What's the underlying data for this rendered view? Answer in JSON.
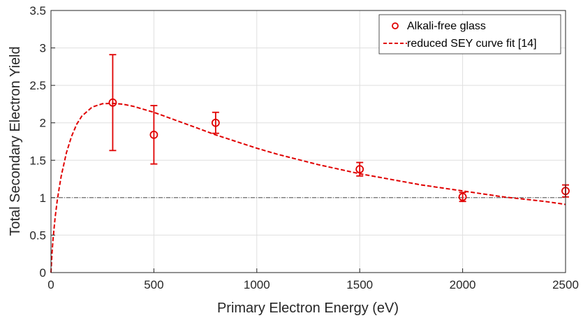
{
  "chart_data": {
    "type": "scatter",
    "xlabel": "Primary Electron Energy (eV)",
    "ylabel": "Total Secondary Electron Yield",
    "xlim": [
      0,
      2500
    ],
    "ylim": [
      0,
      3.5
    ],
    "xticks": [
      0,
      500,
      1000,
      1500,
      2000,
      2500
    ],
    "yticks": [
      0,
      0.5,
      1,
      1.5,
      2,
      2.5,
      3,
      3.5
    ],
    "xtick_labels": [
      "0",
      "500",
      "1000",
      "1500",
      "2000",
      "2500"
    ],
    "ytick_labels": [
      "0",
      "0.5",
      "1",
      "1.5",
      "2",
      "2.5",
      "3",
      "3.5"
    ],
    "grid": true,
    "legend_position": "top-right",
    "reference_line_y": 1,
    "series": [
      {
        "name": "Alkali-free glass",
        "kind": "points-with-errorbars",
        "color": "#e00000",
        "marker": "open-circle",
        "points": [
          {
            "x": 300,
            "y": 2.27,
            "lower": 1.63,
            "upper": 2.91
          },
          {
            "x": 500,
            "y": 1.84,
            "lower": 1.45,
            "upper": 2.23
          },
          {
            "x": 800,
            "y": 2.0,
            "lower": 1.86,
            "upper": 2.14
          },
          {
            "x": 1500,
            "y": 1.38,
            "lower": 1.29,
            "upper": 1.47
          },
          {
            "x": 2000,
            "y": 1.01,
            "lower": 0.95,
            "upper": 1.07
          },
          {
            "x": 2500,
            "y": 1.09,
            "lower": 1.01,
            "upper": 1.17
          }
        ]
      },
      {
        "name": "reduced SEY curve fit [14]",
        "kind": "dashed-line",
        "color": "#e00000",
        "x": [
          0,
          5,
          10,
          20,
          30,
          40,
          50,
          75,
          100,
          125,
          150,
          200,
          250,
          300,
          350,
          400,
          450,
          500,
          600,
          700,
          800,
          900,
          1000,
          1100,
          1200,
          1300,
          1400,
          1500,
          1600,
          1700,
          1800,
          1900,
          2000,
          2100,
          2200,
          2300,
          2400,
          2500
        ],
        "y": [
          0,
          0.26,
          0.44,
          0.73,
          0.95,
          1.13,
          1.29,
          1.6,
          1.82,
          1.98,
          2.09,
          2.21,
          2.255,
          2.26,
          2.248,
          2.22,
          2.18,
          2.14,
          2.04,
          1.94,
          1.84,
          1.75,
          1.66,
          1.58,
          1.51,
          1.44,
          1.38,
          1.32,
          1.27,
          1.22,
          1.17,
          1.13,
          1.09,
          1.05,
          1.01,
          0.98,
          0.95,
          0.91
        ]
      }
    ]
  }
}
